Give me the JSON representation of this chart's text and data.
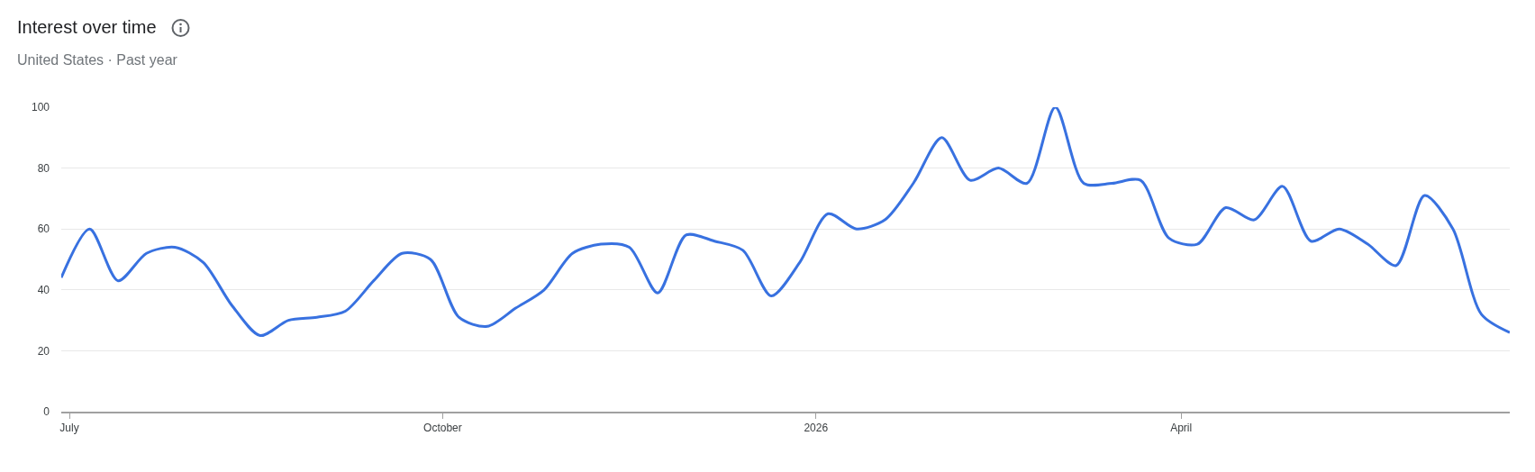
{
  "chart_data": {
    "type": "line",
    "title": "Interest over time",
    "subtitle": "United States · Past year",
    "x": [
      "2025-06-29",
      "2025-07-06",
      "2025-07-13",
      "2025-07-20",
      "2025-07-27",
      "2025-08-03",
      "2025-08-10",
      "2025-08-17",
      "2025-08-24",
      "2025-08-31",
      "2025-09-07",
      "2025-09-14",
      "2025-09-21",
      "2025-09-28",
      "2025-10-05",
      "2025-10-12",
      "2025-10-19",
      "2025-10-26",
      "2025-11-02",
      "2025-11-09",
      "2025-11-16",
      "2025-11-23",
      "2025-11-30",
      "2025-12-07",
      "2025-12-14",
      "2025-12-21",
      "2025-12-28",
      "2026-01-04",
      "2026-01-11",
      "2026-01-18",
      "2026-01-25",
      "2026-02-01",
      "2026-02-08",
      "2026-02-15",
      "2026-02-22",
      "2026-03-01",
      "2026-03-08",
      "2026-03-15",
      "2026-03-22",
      "2026-03-29",
      "2026-04-05",
      "2026-04-12",
      "2026-04-19",
      "2026-04-26",
      "2026-05-03",
      "2026-05-10",
      "2026-05-17",
      "2026-05-24",
      "2026-05-31",
      "2026-06-07",
      "2026-06-14",
      "2026-06-21"
    ],
    "series": [
      {
        "color": "#3871e0",
        "values": [
          44,
          60,
          43,
          52,
          54,
          49,
          35,
          25,
          30,
          31,
          33,
          43,
          52,
          50,
          31,
          28,
          34,
          40,
          52,
          55,
          54,
          39,
          58,
          56,
          53,
          38,
          49,
          65,
          60,
          63,
          75,
          90,
          76,
          80,
          75,
          100,
          75,
          75,
          76,
          57,
          55,
          67,
          63,
          74,
          56,
          60,
          55,
          48,
          71,
          60,
          32,
          26
        ]
      }
    ],
    "xlim": [
      "2025-06-29",
      "2026-06-21"
    ],
    "xticks": [
      {
        "value": "2025-07-01",
        "label": "July"
      },
      {
        "value": "2025-10-01",
        "label": "October"
      },
      {
        "value": "2026-01-01",
        "label": "2026"
      },
      {
        "value": "2026-04-01",
        "label": "April"
      }
    ],
    "ylim": [
      0,
      100
    ],
    "yticks": [
      0,
      20,
      40,
      60,
      80,
      100
    ],
    "grid": "y",
    "line_style": "solid"
  }
}
